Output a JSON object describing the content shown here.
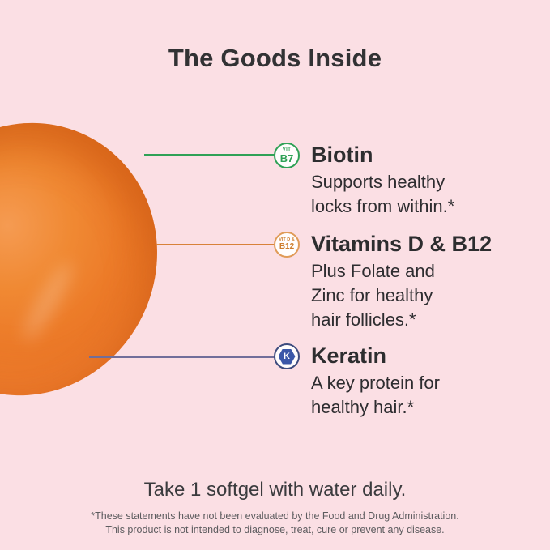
{
  "title": "The Goods Inside",
  "capsule": {
    "description": "orange softgel capsule"
  },
  "callouts": [
    {
      "badge_line1": "VIT",
      "badge_line2": "B7",
      "accent_color": "#2FA156",
      "heading": "Biotin",
      "body_lines": [
        "Supports healthy",
        "locks from within.*"
      ]
    },
    {
      "badge_line1": "VIT D &",
      "badge_line2": "B12",
      "accent_color": "#D8823A",
      "badge_ring_color": "#E09B58",
      "heading": "Vitamins D & B12",
      "body_lines": [
        "Plus Folate and",
        "Zinc for healthy",
        "hair follicles.*"
      ]
    },
    {
      "badge_letter": "K",
      "accent_color": "#716E9A",
      "ring_color": "#3E4C7E",
      "hexagon_color": "#3A57A8",
      "heading": "Keratin",
      "body_lines": [
        "A key protein for",
        "healthy hair.*"
      ]
    }
  ],
  "footer": {
    "instruction": "Take 1 softgel with water daily.",
    "disclaimer_line1": "*These statements have not been evaluated by the Food and Drug Administration.",
    "disclaimer_line2": "This product is not intended to diagnose, treat, cure or prevent any disease."
  },
  "colors": {
    "background": "#FBDFE4",
    "title_text": "#323234",
    "body_text": "#2E2D30",
    "capsule_orange": "#ED7C2B",
    "disclaimer_gray": "#5D5C5F"
  }
}
